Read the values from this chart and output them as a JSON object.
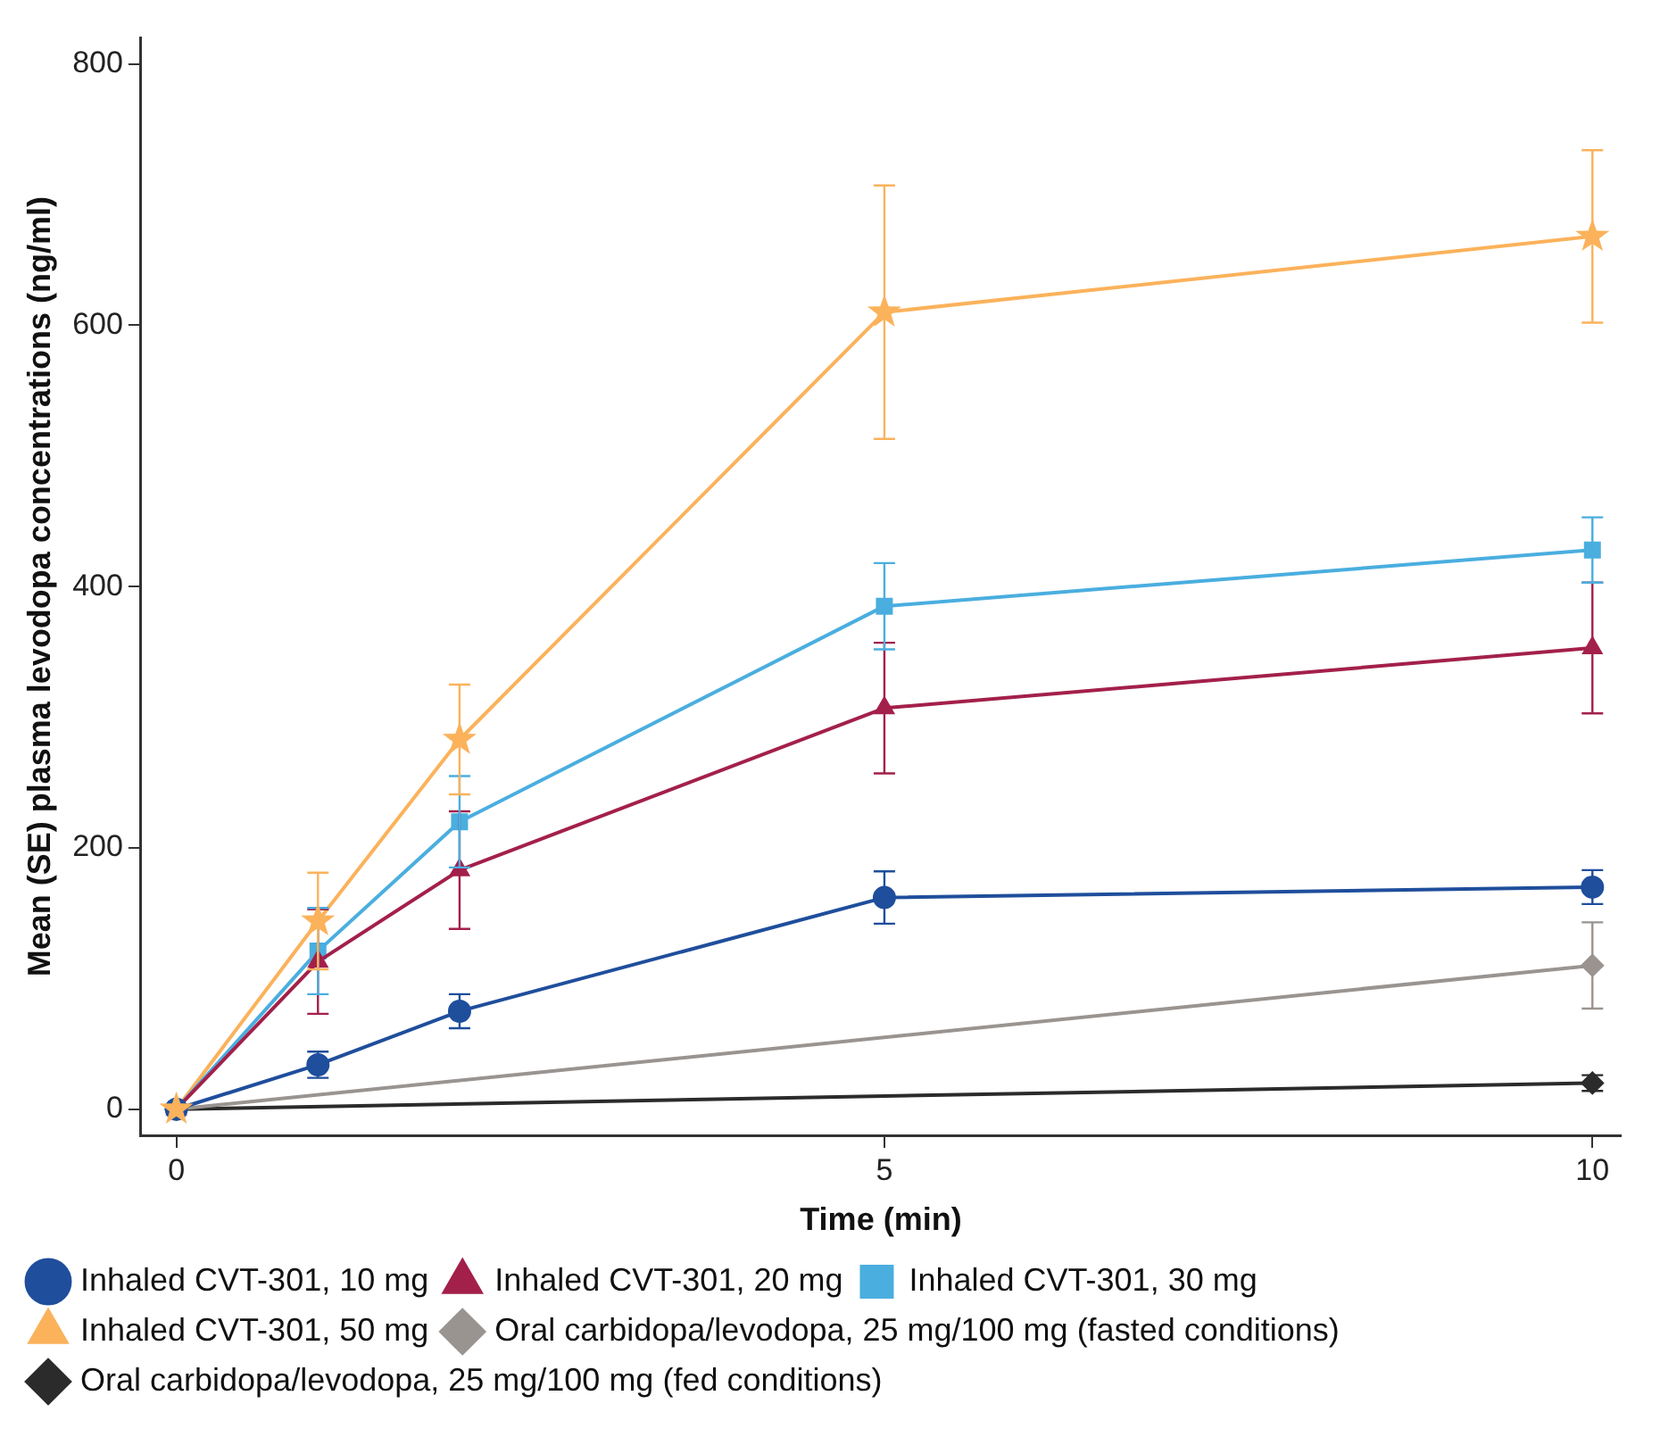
{
  "chart_data": {
    "type": "line",
    "xlabel": "Time (min)",
    "ylabel": "Mean (SE) plasma levodopa concentrations (ng/ml)",
    "x": [
      0,
      1,
      2,
      5,
      10
    ],
    "xlim": [
      -0.25,
      10.2
    ],
    "xticks": [
      0,
      5,
      10
    ],
    "ylim": [
      -20,
      820
    ],
    "yticks": [
      0,
      200,
      400,
      600,
      800
    ],
    "grid": false,
    "legend": "bottom",
    "series": [
      {
        "name": "Inhaled CVT-301, 10 mg",
        "color": "#1f4e9c",
        "marker": "circle",
        "values": [
          0,
          34,
          75,
          162,
          170
        ],
        "errors": [
          null,
          10,
          13,
          20,
          13
        ]
      },
      {
        "name": "Inhaled CVT-301, 20 mg",
        "color": "#a3204a",
        "marker": "triangle",
        "values": [
          0,
          113,
          183,
          307,
          353
        ],
        "errors": [
          null,
          40,
          45,
          50,
          50
        ]
      },
      {
        "name": "Inhaled CVT-301, 30 mg",
        "color": "#4aaedf",
        "marker": "square",
        "values": [
          0,
          121,
          220,
          385,
          428
        ],
        "errors": [
          null,
          33,
          35,
          33,
          25
        ]
      },
      {
        "name": "Inhaled CVT-301, 50 mg",
        "color": "#fbb25b",
        "marker": "star",
        "values": [
          0,
          144,
          283,
          610,
          668
        ],
        "errors": [
          null,
          37,
          42,
          97,
          66
        ]
      },
      {
        "name": "Oral carbidopa/levodopa, 25 mg/100 mg (fasted conditions)",
        "color": "#9a9490",
        "marker": "diamond",
        "values": [
          0,
          null,
          null,
          null,
          110
        ],
        "errors": [
          null,
          null,
          null,
          null,
          33
        ]
      },
      {
        "name": "Oral carbidopa/levodopa, 25 mg/100 mg (fed conditions)",
        "color": "#2b2b2b",
        "marker": "diamond",
        "values": [
          0,
          null,
          null,
          null,
          20
        ],
        "errors": [
          null,
          null,
          null,
          null,
          6
        ]
      }
    ]
  }
}
